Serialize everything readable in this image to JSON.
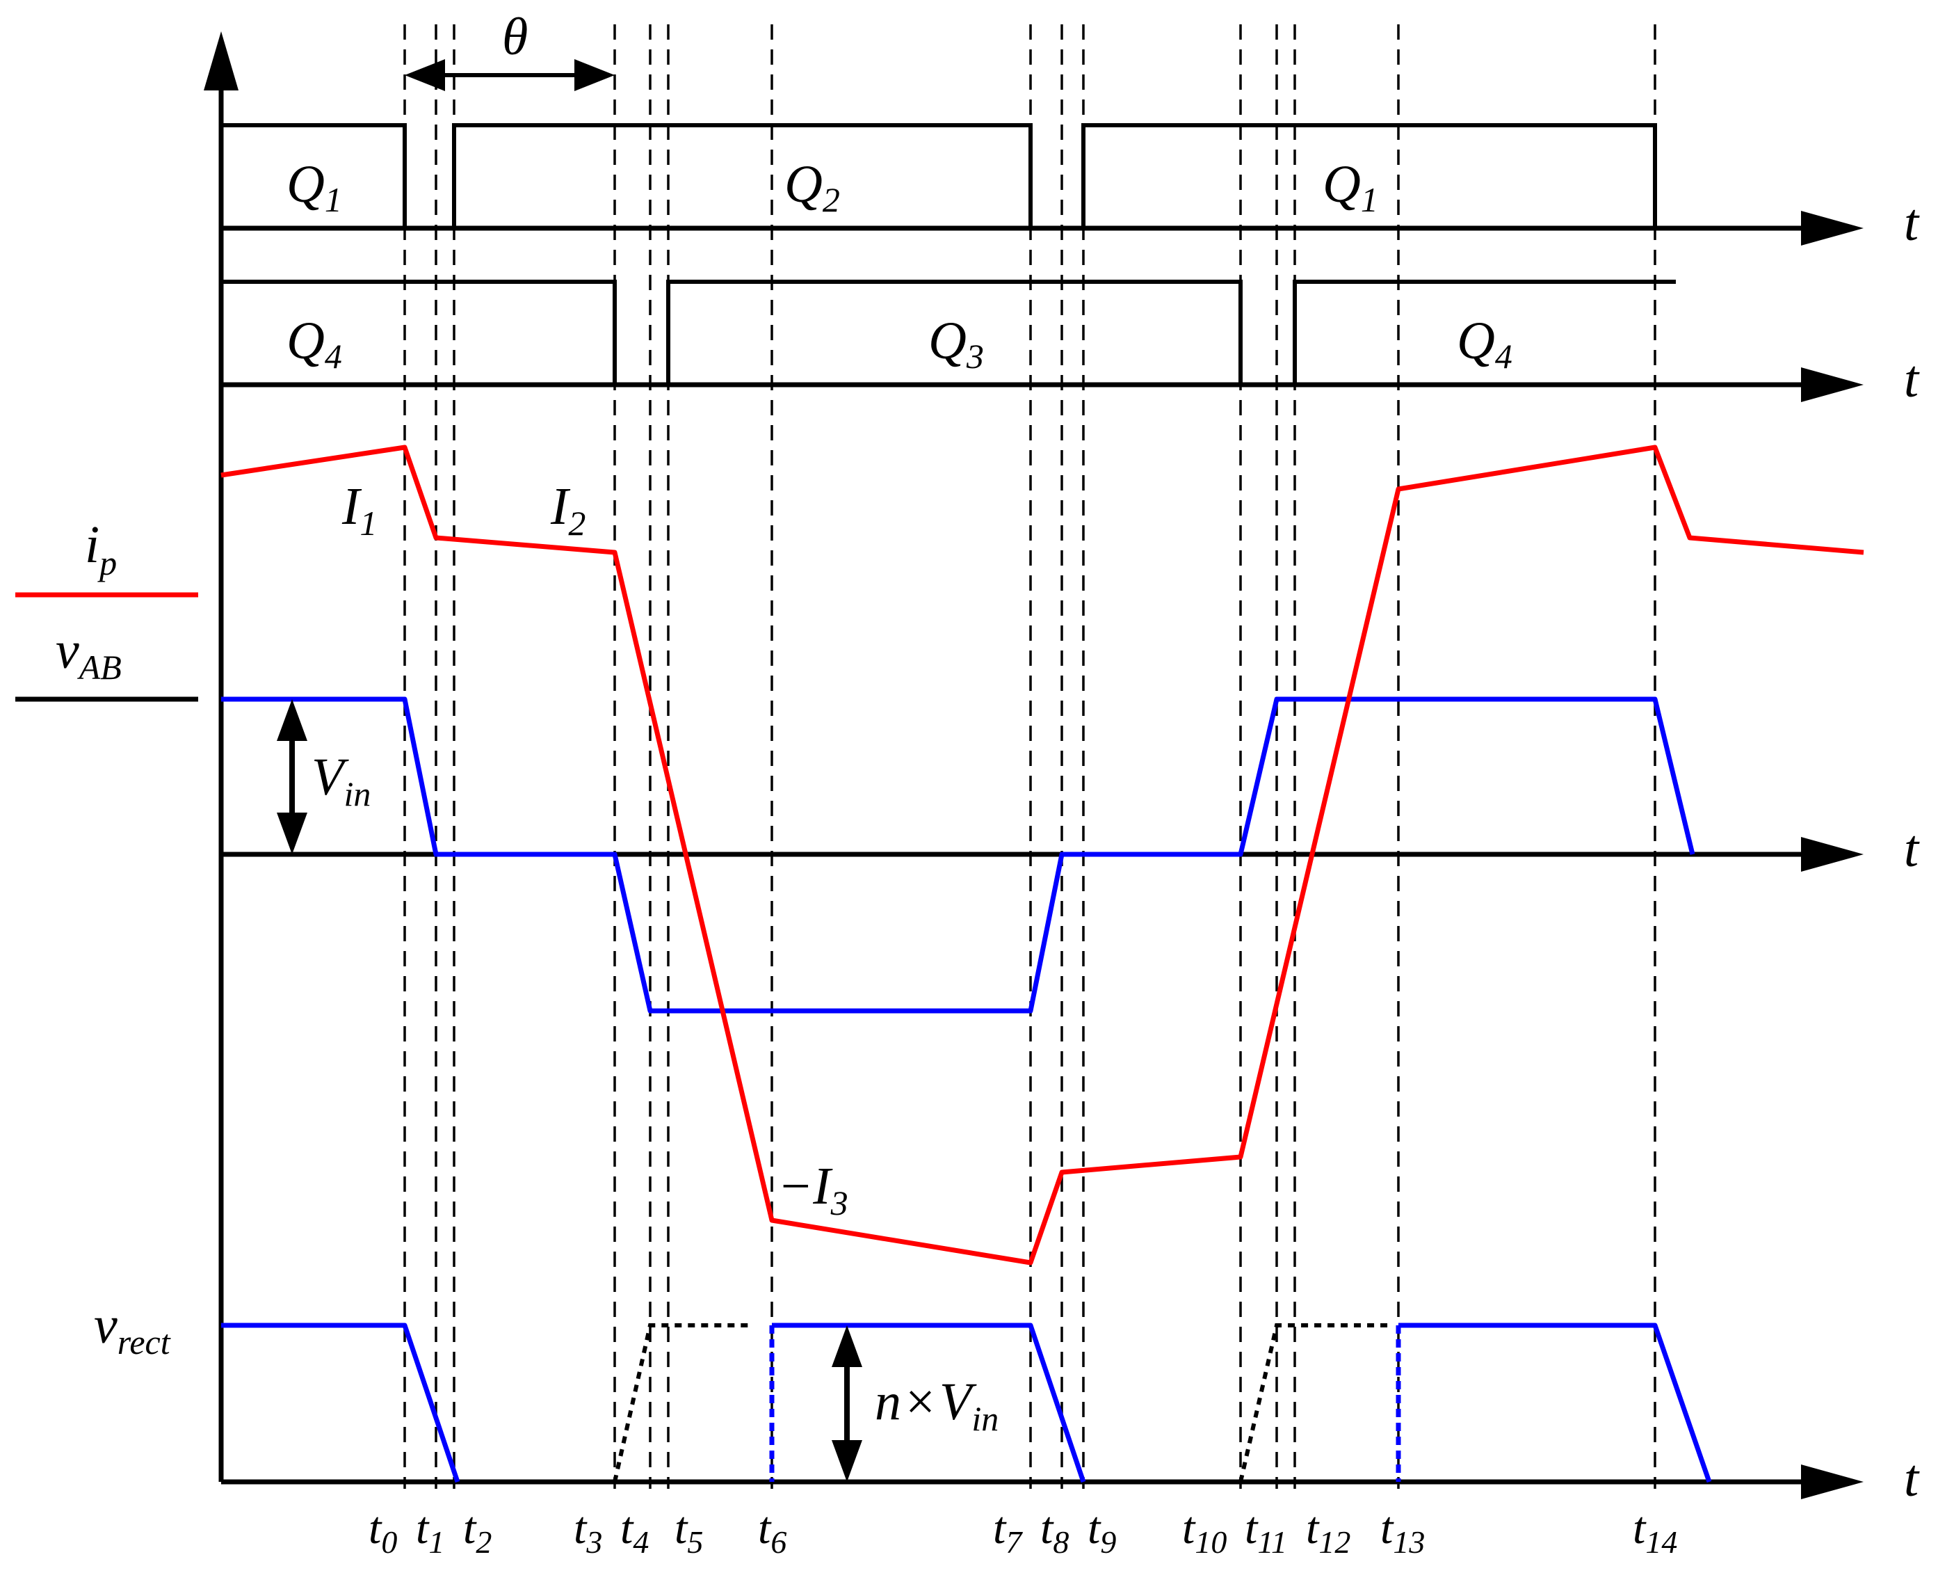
{
  "axes": {
    "time_label": "t"
  },
  "phase_shift": {
    "symbol": "θ"
  },
  "gate_signals": {
    "row1": [
      {
        "text": "Q",
        "sub": "1"
      },
      {
        "text": "Q",
        "sub": "2"
      },
      {
        "text": "Q",
        "sub": "1"
      }
    ],
    "row2": [
      {
        "text": "Q",
        "sub": "4"
      },
      {
        "text": "Q",
        "sub": "3"
      },
      {
        "text": "Q",
        "sub": "4"
      }
    ]
  },
  "legend": {
    "primary_current": {
      "text": "i",
      "sub": "p",
      "color": "#ff0000"
    },
    "bridge_voltage": {
      "text": "v",
      "sub": "AB",
      "color": "#000000"
    }
  },
  "current_labels": [
    {
      "text": "I",
      "sub": "1"
    },
    {
      "text": "I",
      "sub": "2"
    },
    {
      "text": "−I",
      "sub": "3"
    }
  ],
  "vab_amplitude": {
    "text": "V",
    "sub": "in"
  },
  "rectifier": {
    "label": {
      "text": "v",
      "sub": "rect"
    },
    "amplitude": {
      "text": "n",
      "times": "×",
      "var": "V",
      "sub": "in"
    }
  },
  "time_instants": [
    {
      "text": "t",
      "sub": "0"
    },
    {
      "text": "t",
      "sub": "1"
    },
    {
      "text": "t",
      "sub": "2"
    },
    {
      "text": "t",
      "sub": "3"
    },
    {
      "text": "t",
      "sub": "4"
    },
    {
      "text": "t",
      "sub": "5"
    },
    {
      "text": "t",
      "sub": "6"
    },
    {
      "text": "t",
      "sub": "7"
    },
    {
      "text": "t",
      "sub": "8"
    },
    {
      "text": "t",
      "sub": "9"
    },
    {
      "text": "t",
      "sub": "10"
    },
    {
      "text": "t",
      "sub": "11"
    },
    {
      "text": "t",
      "sub": "12"
    },
    {
      "text": "t",
      "sub": "13"
    },
    {
      "text": "t",
      "sub": "14"
    }
  ],
  "colors": {
    "current": "#ff0000",
    "voltage": "#0000ff",
    "axes": "#000000"
  }
}
